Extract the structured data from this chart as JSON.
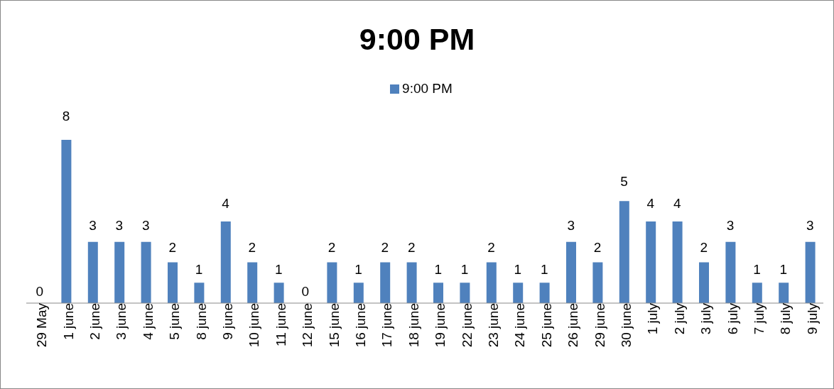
{
  "chart_data": {
    "type": "bar",
    "title": "9:00 PM",
    "categories": [
      "29 May",
      "1 june",
      "2 june",
      "3 june",
      "4 june",
      "5 june",
      "8 june",
      "9 june",
      "10 june",
      "11 june",
      "12 june",
      "15 june",
      "16 june",
      "17 june",
      "18 june",
      "19 june",
      "22 june",
      "23 june",
      "24 june",
      "25 june",
      "26 june",
      "29 june",
      "30 june",
      "1 july",
      "2 july",
      "3 july",
      "6 july",
      "7 july",
      "8 july",
      "9 july"
    ],
    "series": [
      {
        "name": "9:00 PM",
        "color": "#4f81bd",
        "values": [
          0,
          8,
          3,
          3,
          3,
          2,
          1,
          4,
          2,
          1,
          0,
          2,
          1,
          2,
          2,
          1,
          1,
          2,
          1,
          1,
          3,
          2,
          5,
          4,
          4,
          2,
          3,
          1,
          1,
          3
        ]
      }
    ],
    "tick_labels": "x",
    "data_labels": true,
    "legend": "top",
    "grid": false
  }
}
